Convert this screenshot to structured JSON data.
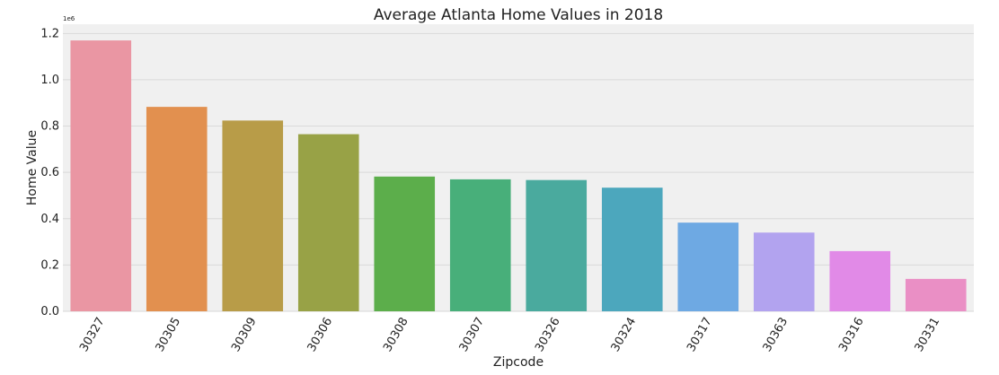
{
  "chart_data": {
    "type": "bar",
    "title": "Average Atlanta Home Values in 2018",
    "xlabel": "Zipcode",
    "ylabel": "Home Value",
    "y_offset_label": "1e6",
    "categories": [
      "30327",
      "30305",
      "30309",
      "30306",
      "30308",
      "30307",
      "30326",
      "30324",
      "30317",
      "30363",
      "30316",
      "30331"
    ],
    "values": [
      1170000,
      883000,
      824000,
      765000,
      582000,
      570000,
      567000,
      534000,
      383000,
      340000,
      260000,
      140000
    ],
    "ylim": [
      0,
      1240000
    ],
    "yticks": [
      0,
      200000,
      400000,
      600000,
      800000,
      1000000,
      1200000
    ],
    "ytick_labels": [
      "0.0",
      "0.2",
      "0.4",
      "0.6",
      "0.8",
      "1.0",
      "1.2"
    ],
    "grid": true,
    "colors": [
      "#ea96a3",
      "#e2904f",
      "#b89c48",
      "#98a246",
      "#5cae4b",
      "#48af7a",
      "#4aaa9e",
      "#4ca7bd",
      "#6ea9e3",
      "#b2a3ef",
      "#e18ae7",
      "#ea8fc5"
    ],
    "plot_background": "#f0f0f0",
    "grid_color": "#d9d9d9"
  }
}
